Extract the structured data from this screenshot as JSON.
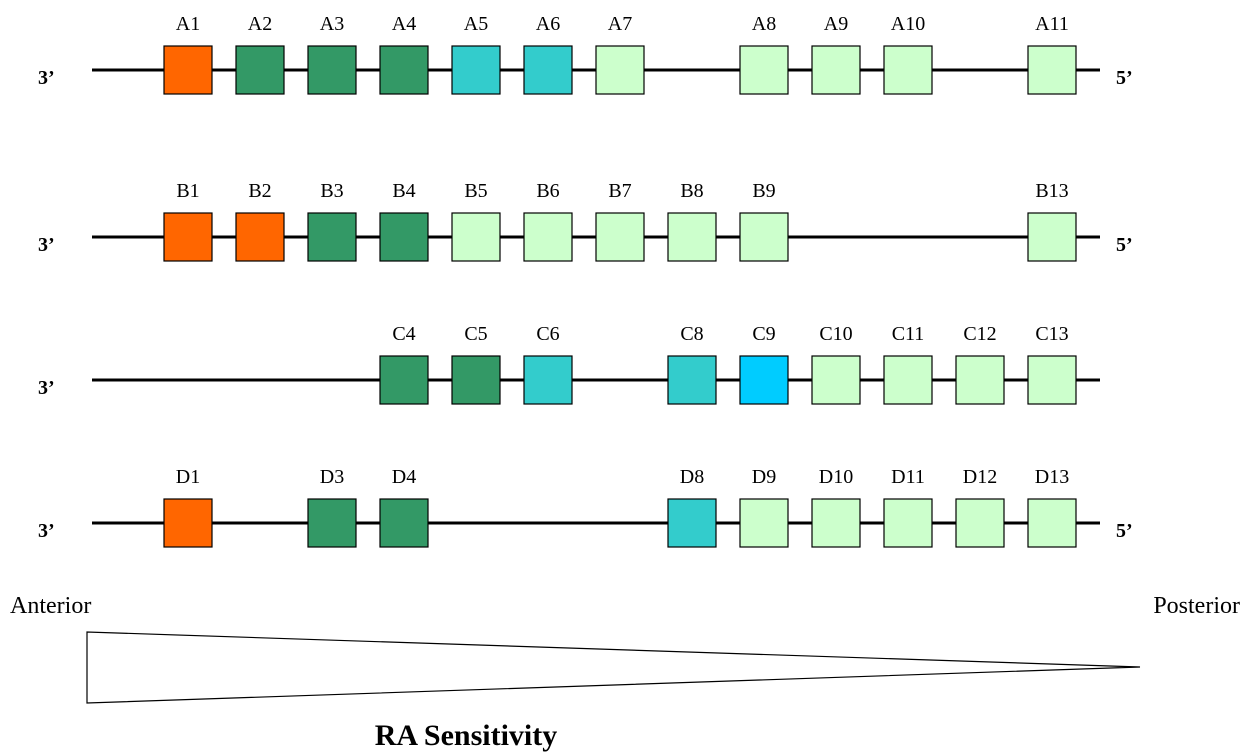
{
  "rows": [
    {
      "left": "3’",
      "right": "5’",
      "genes": [
        {
          "label": "A1",
          "color": "#ff6600"
        },
        {
          "label": "A2",
          "color": "#339966"
        },
        {
          "label": "A3",
          "color": "#339966"
        },
        {
          "label": "A4",
          "color": "#339966"
        },
        {
          "label": "A5",
          "color": "#33cccc"
        },
        {
          "label": "A6",
          "color": "#33cccc"
        },
        {
          "label": "A7",
          "color": "#ccffcc"
        },
        null,
        {
          "label": "A8",
          "color": "#ccffcc"
        },
        {
          "label": "A9",
          "color": "#ccffcc"
        },
        {
          "label": "A10",
          "color": "#ccffcc"
        },
        null,
        {
          "label": "A11",
          "color": "#ccffcc"
        }
      ]
    },
    {
      "left": "3’",
      "right": "5’",
      "genes": [
        {
          "label": "B1",
          "color": "#ff6600"
        },
        {
          "label": "B2",
          "color": "#ff6600"
        },
        {
          "label": "B3",
          "color": "#339966"
        },
        {
          "label": "B4",
          "color": "#339966"
        },
        {
          "label": "B5",
          "color": "#ccffcc"
        },
        {
          "label": "B6",
          "color": "#ccffcc"
        },
        {
          "label": "B7",
          "color": "#ccffcc"
        },
        {
          "label": "B8",
          "color": "#ccffcc"
        },
        {
          "label": "B9",
          "color": "#ccffcc"
        },
        null,
        null,
        null,
        {
          "label": "B13",
          "color": "#ccffcc"
        }
      ]
    },
    {
      "left": "3’",
      "right": null,
      "genes": [
        null,
        null,
        null,
        {
          "label": "C4",
          "color": "#339966"
        },
        {
          "label": "C5",
          "color": "#339966"
        },
        {
          "label": "C6",
          "color": "#33cccc"
        },
        null,
        {
          "label": "C8",
          "color": "#33cccc"
        },
        {
          "label": "C9",
          "color": "#00ccff"
        },
        {
          "label": "C10",
          "color": "#ccffcc"
        },
        {
          "label": "C11",
          "color": "#ccffcc"
        },
        {
          "label": "C12",
          "color": "#ccffcc"
        },
        {
          "label": "C13",
          "color": "#ccffcc"
        }
      ]
    },
    {
      "left": "3’",
      "right": "5’",
      "genes": [
        {
          "label": "D1",
          "color": "#ff6600"
        },
        null,
        {
          "label": "D3",
          "color": "#339966"
        },
        {
          "label": "D4",
          "color": "#339966"
        },
        null,
        null,
        null,
        {
          "label": "D8",
          "color": "#33cccc"
        },
        {
          "label": "D9",
          "color": "#ccffcc"
        },
        {
          "label": "D10",
          "color": "#ccffcc"
        },
        {
          "label": "D11",
          "color": "#ccffcc"
        },
        {
          "label": "D12",
          "color": "#ccffcc"
        },
        {
          "label": "D13",
          "color": "#ccffcc"
        }
      ]
    }
  ],
  "gradient": {
    "left": "Anterior",
    "right": "Posterior",
    "title": "RA Sensitivity"
  }
}
